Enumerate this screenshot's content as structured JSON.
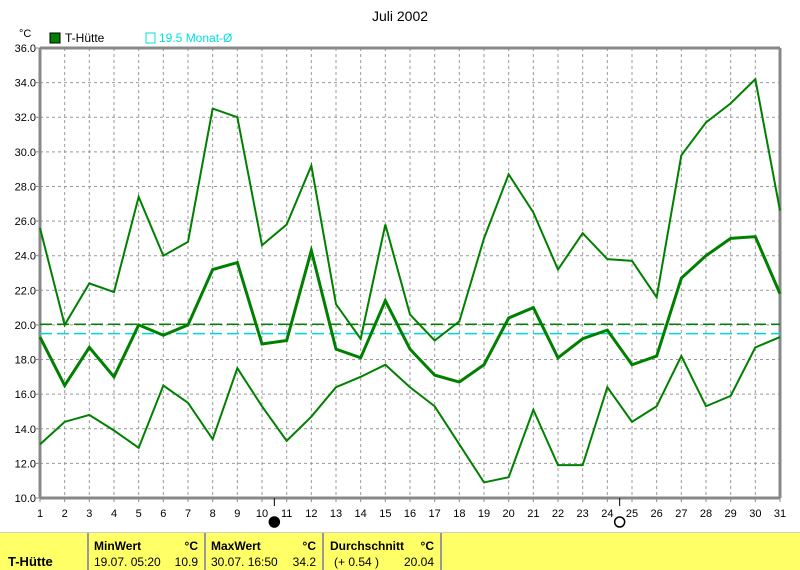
{
  "chart_data": {
    "type": "line",
    "title": "Juli 2002",
    "ylabel": "°C",
    "ylim": [
      10,
      36
    ],
    "yticks": [
      "10.0",
      "12.0",
      "14.0",
      "16.0",
      "18.0",
      "20.0",
      "22.0",
      "24.0",
      "26.0",
      "28.0",
      "30.0",
      "32.0",
      "34.0",
      "36.0"
    ],
    "x": [
      1,
      2,
      3,
      4,
      5,
      6,
      7,
      8,
      9,
      10,
      11,
      12,
      13,
      14,
      15,
      16,
      17,
      18,
      19,
      20,
      21,
      22,
      23,
      24,
      25,
      26,
      27,
      28,
      29,
      30,
      31
    ],
    "legend": [
      "T-Hütte",
      "19.5 Monat-Ø"
    ],
    "grid": true,
    "series": [
      {
        "name": "T-Hütte max",
        "color": "#008000",
        "values": [
          25.6,
          20.0,
          22.4,
          21.9,
          27.4,
          24.0,
          24.8,
          32.5,
          32.0,
          24.6,
          25.8,
          29.2,
          21.2,
          19.2,
          25.8,
          20.6,
          19.1,
          20.2,
          25.0,
          28.7,
          26.5,
          23.2,
          25.3,
          23.8,
          23.7,
          21.6,
          29.8,
          31.7,
          32.8,
          34.2,
          26.6
        ]
      },
      {
        "name": "T-Hütte mean",
        "color": "#008000",
        "values": [
          19.3,
          16.5,
          18.7,
          17.0,
          20.0,
          19.4,
          20.0,
          23.2,
          23.6,
          18.9,
          19.1,
          24.3,
          18.6,
          18.1,
          21.4,
          18.6,
          17.1,
          16.7,
          17.7,
          20.4,
          21.0,
          18.1,
          19.2,
          19.7,
          17.7,
          18.2,
          22.7,
          24.0,
          25.0,
          25.1,
          21.8
        ]
      },
      {
        "name": "T-Hütte min",
        "color": "#008000",
        "values": [
          13.1,
          14.4,
          14.8,
          13.9,
          12.9,
          16.5,
          15.5,
          13.4,
          17.5,
          15.3,
          13.3,
          14.7,
          16.4,
          17.0,
          17.7,
          16.4,
          15.3,
          13.1,
          10.9,
          11.2,
          15.1,
          11.9,
          11.9,
          16.4,
          14.4,
          15.3,
          18.2,
          15.3,
          15.9,
          18.7,
          19.3
        ]
      }
    ],
    "reference_lines": [
      {
        "name": "Durchschnitt",
        "value": 20.04,
        "color": "#008000"
      },
      {
        "name": "Monat-Ø",
        "value": 19.5,
        "color": "#00d8d8"
      }
    ],
    "moon_phases": [
      {
        "phase": "full",
        "day": 10.5
      },
      {
        "phase": "new",
        "day": 24.5
      }
    ]
  },
  "table": {
    "series": "T-Hütte",
    "min": {
      "label": "MinWert",
      "unit": "°C",
      "when": "19.07.  05:20",
      "value": "10.9"
    },
    "max": {
      "label": "MaxWert",
      "unit": "°C",
      "when": "30.07.  16:50",
      "value": "34.2"
    },
    "avg": {
      "label": "Durchschnitt",
      "unit": "°C",
      "delta": "(+ 0.54 )",
      "value": "20.04"
    }
  }
}
